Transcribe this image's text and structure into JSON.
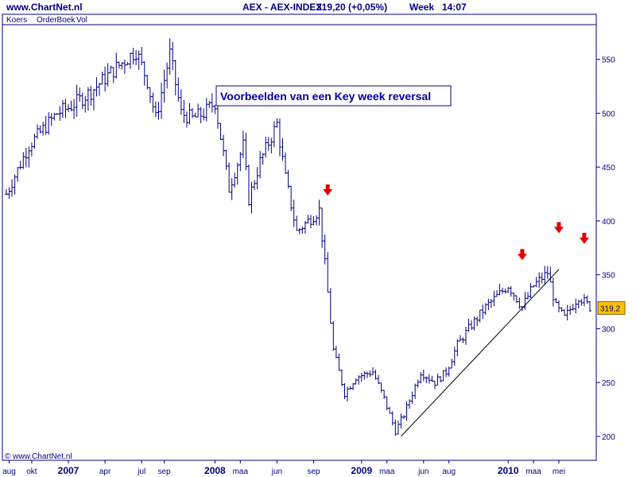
{
  "header": {
    "site": "www.ChartNet.nl",
    "title": "AEX - AEX-INDEX",
    "last": "319,20 (+0,05%)",
    "period": "Week",
    "time": "14:07"
  },
  "tabs": [
    "Koers",
    "OrderBoek",
    "Vol"
  ],
  "watermark": "© www.ChartNet.nl",
  "last_price_badge": "319,2",
  "colors": {
    "bars": "#000080",
    "text": "#000080",
    "arrows": "#e00000",
    "badge_bg": "#ffc000",
    "trendline": "#000000"
  },
  "annotation": "Voorbeelden van een Key week reversal",
  "chart_data": {
    "type": "ohlc",
    "title": "",
    "xlabel": "",
    "ylabel": "",
    "ylim": [
      180,
      580
    ],
    "y_ticks": [
      200,
      250,
      300,
      350,
      400,
      450,
      500,
      550
    ],
    "y_tick_labels": [
      "200",
      "250",
      "300",
      "350",
      "400",
      "450",
      "500",
      "550"
    ],
    "grid": false,
    "x_labels": [
      {
        "label": "aug",
        "year": false,
        "week": 1
      },
      {
        "label": "okt",
        "year": false,
        "week": 9
      },
      {
        "label": "2007",
        "year": true,
        "week": 22
      },
      {
        "label": "apr",
        "year": false,
        "week": 35
      },
      {
        "label": "jul",
        "year": false,
        "week": 48
      },
      {
        "label": "sep",
        "year": false,
        "week": 56
      },
      {
        "label": "2008",
        "year": true,
        "week": 74
      },
      {
        "label": "maa",
        "year": false,
        "week": 83
      },
      {
        "label": "jun",
        "year": false,
        "week": 96
      },
      {
        "label": "sep",
        "year": false,
        "week": 109
      },
      {
        "label": "2009",
        "year": true,
        "week": 126
      },
      {
        "label": "maa",
        "year": false,
        "week": 135
      },
      {
        "label": "jun",
        "year": false,
        "week": 148
      },
      {
        "label": "aug",
        "year": false,
        "week": 157
      },
      {
        "label": "2010",
        "year": true,
        "week": 178
      },
      {
        "label": "maa",
        "year": false,
        "week": 187
      },
      {
        "label": "mei",
        "year": false,
        "week": 196
      }
    ],
    "weeks": 208,
    "anchors": [
      [
        0,
        425
      ],
      [
        8,
        470
      ],
      [
        18,
        500
      ],
      [
        22,
        505
      ],
      [
        30,
        520
      ],
      [
        38,
        540
      ],
      [
        46,
        558
      ],
      [
        50,
        530
      ],
      [
        53,
        495
      ],
      [
        58,
        555
      ],
      [
        62,
        500
      ],
      [
        66,
        495
      ],
      [
        70,
        500
      ],
      [
        74,
        510
      ],
      [
        79,
        430
      ],
      [
        84,
        470
      ],
      [
        86,
        420
      ],
      [
        90,
        455
      ],
      [
        96,
        490
      ],
      [
        99,
        440
      ],
      [
        103,
        390
      ],
      [
        107,
        400
      ],
      [
        111,
        410
      ],
      [
        113,
        360
      ],
      [
        116,
        280
      ],
      [
        118,
        260
      ],
      [
        120,
        240
      ],
      [
        124,
        255
      ],
      [
        130,
        260
      ],
      [
        134,
        235
      ],
      [
        138,
        205
      ],
      [
        141,
        220
      ],
      [
        147,
        260
      ],
      [
        152,
        250
      ],
      [
        156,
        260
      ],
      [
        160,
        285
      ],
      [
        164,
        300
      ],
      [
        170,
        320
      ],
      [
        174,
        330
      ],
      [
        178,
        340
      ],
      [
        183,
        320
      ],
      [
        187,
        340
      ],
      [
        192,
        352
      ],
      [
        195,
        320
      ],
      [
        198,
        310
      ],
      [
        203,
        330
      ],
      [
        207,
        320
      ]
    ],
    "trendline": {
      "from": [
        140,
        200
      ],
      "to": [
        196,
        355
      ]
    },
    "reversal_markers": [
      {
        "week": 114,
        "value": 428
      },
      {
        "week": 183,
        "value": 368
      },
      {
        "week": 196,
        "value": 393
      },
      {
        "week": 205,
        "value": 383
      }
    ],
    "last_value": 319.2
  }
}
